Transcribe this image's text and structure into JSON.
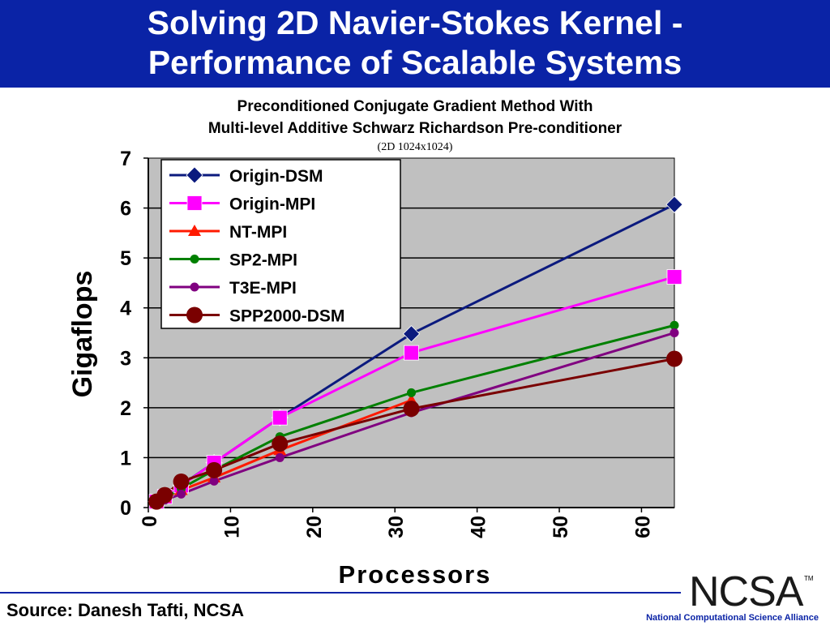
{
  "slide": {
    "title_line1": "Solving 2D Navier-Stokes Kernel -",
    "title_line2": "Performance of Scalable Systems",
    "subtitle_line1": "Preconditioned Conjugate Gradient Method With",
    "subtitle_line2": "Multi-level Additive Schwarz Richardson Pre-conditioner",
    "subtitle_note": "(2D 1024x1024)",
    "source": "Source:  Danesh Tafti, NCSA",
    "logo_text": "NCSA",
    "logo_tm": "TM",
    "org_name": "National Computational Science Alliance",
    "title_bar_color": "#0a23a6"
  },
  "chart_data": {
    "type": "line",
    "xlabel": "Processors",
    "ylabel": "Gigaflops",
    "xlim": [
      0,
      64
    ],
    "ylim": [
      0,
      7
    ],
    "xticks": [
      "0",
      "10",
      "20",
      "30",
      "40",
      "50",
      "60"
    ],
    "yticks": [
      "0",
      "1",
      "2",
      "3",
      "4",
      "5",
      "6",
      "7"
    ],
    "grid": "horizontal",
    "plot_background": "#c0c0c0",
    "legend_position": "top-left",
    "series": [
      {
        "name": "Origin-DSM",
        "color": "#0b1a7e",
        "marker": "diamond",
        "x": [
          1,
          2,
          4,
          8,
          16,
          32,
          64
        ],
        "y": [
          0.12,
          0.22,
          0.45,
          0.9,
          1.8,
          3.48,
          6.07
        ]
      },
      {
        "name": "Origin-MPI",
        "color": "#ff00ff",
        "marker": "square",
        "x": [
          1,
          2,
          4,
          8,
          16,
          32,
          64
        ],
        "y": [
          0.12,
          0.22,
          0.44,
          0.9,
          1.8,
          3.1,
          4.62
        ]
      },
      {
        "name": "NT-MPI",
        "color": "#ff1a00",
        "marker": "triangle",
        "x": [
          1,
          2,
          4,
          8,
          16,
          32
        ],
        "y": [
          0.1,
          0.2,
          0.35,
          0.6,
          1.15,
          2.15
        ]
      },
      {
        "name": "SP2-MPI",
        "color": "#008000",
        "marker": "circle-small",
        "x": [
          1,
          2,
          4,
          8,
          16,
          32,
          64
        ],
        "y": [
          0.1,
          0.2,
          0.38,
          0.75,
          1.42,
          2.3,
          3.65
        ]
      },
      {
        "name": "T3E-MPI",
        "color": "#800080",
        "marker": "circle-small",
        "x": [
          1,
          2,
          4,
          8,
          16,
          32,
          64
        ],
        "y": [
          0.08,
          0.15,
          0.27,
          0.53,
          1.0,
          1.9,
          3.5
        ]
      },
      {
        "name": "SPP2000-DSM",
        "color": "#7a0000",
        "marker": "circle-large",
        "x": [
          1,
          2,
          4,
          8,
          16,
          32,
          64
        ],
        "y": [
          0.12,
          0.25,
          0.52,
          0.75,
          1.28,
          1.98,
          2.98
        ]
      }
    ]
  }
}
